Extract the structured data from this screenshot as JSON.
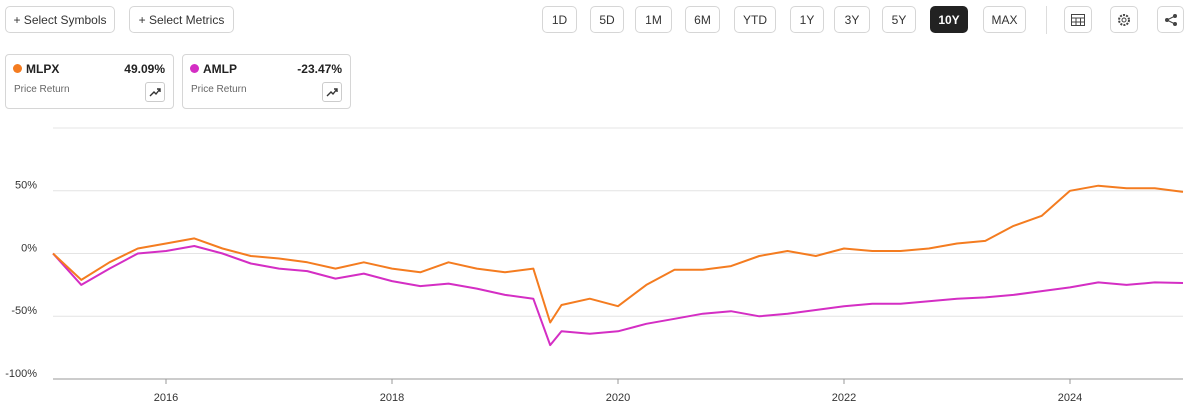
{
  "toolbar": {
    "left_buttons": [
      "+ Select Symbols",
      "+ Select Metrics"
    ],
    "ranges": [
      {
        "label": "1D"
      },
      {
        "label": "5D"
      },
      {
        "label": "1M"
      },
      {
        "label": "6M"
      },
      {
        "label": "YTD"
      },
      {
        "label": "1Y"
      },
      {
        "label": "3Y"
      },
      {
        "label": "5Y"
      },
      {
        "label": "10Y",
        "selected": true
      },
      {
        "label": "MAX"
      }
    ]
  },
  "chart_data": {
    "type": "line",
    "x": [
      2015.0,
      2015.25,
      2015.5,
      2015.75,
      2016.0,
      2016.25,
      2016.5,
      2016.75,
      2017.0,
      2017.25,
      2017.5,
      2017.75,
      2018.0,
      2018.25,
      2018.5,
      2018.75,
      2019.0,
      2019.25,
      2019.4,
      2019.5,
      2019.75,
      2020.0,
      2020.25,
      2020.5,
      2020.75,
      2021.0,
      2021.25,
      2021.5,
      2021.75,
      2022.0,
      2022.25,
      2022.5,
      2022.75,
      2023.0,
      2023.25,
      2023.5,
      2023.75,
      2024.0,
      2024.25,
      2024.5,
      2024.75,
      2025.0
    ],
    "series": [
      {
        "name": "MLPX",
        "color": "#f47c20",
        "change": "49.09%",
        "metric": "Price Return",
        "values": [
          0,
          -21,
          -7,
          4,
          8,
          12,
          4,
          -2,
          -4,
          -7,
          -12,
          -7,
          -12,
          -15,
          -7,
          -12,
          -15,
          -12,
          -55,
          -41,
          -36,
          -42,
          -25,
          -13,
          -13,
          -10,
          -2,
          2,
          -2,
          4,
          2,
          2,
          4,
          8,
          10,
          22,
          30,
          50,
          54,
          52,
          52,
          49.09
        ]
      },
      {
        "name": "AMLP",
        "color": "#d42ec4",
        "change": "-23.47%",
        "metric": "Price Return",
        "values": [
          0,
          -25,
          -12,
          0,
          2,
          6,
          0,
          -8,
          -12,
          -14,
          -20,
          -16,
          -22,
          -26,
          -24,
          -28,
          -33,
          -36,
          -73,
          -62,
          -64,
          -62,
          -56,
          -52,
          -48,
          -46,
          -50,
          -48,
          -45,
          -42,
          -40,
          -40,
          -38,
          -36,
          -35,
          -33,
          -30,
          -27,
          -23,
          -25,
          -23,
          -23.47
        ]
      }
    ],
    "xlim": [
      2015,
      2025
    ],
    "xticks": [
      2016,
      2018,
      2020,
      2022,
      2024
    ],
    "ylim": [
      -100,
      100
    ],
    "yticks": [
      {
        "value": -100,
        "label": "-100%"
      },
      {
        "value": -50,
        "label": "-50%"
      },
      {
        "value": 0,
        "label": "0%"
      },
      {
        "value": 50,
        "label": "50%"
      }
    ],
    "grid": true
  }
}
